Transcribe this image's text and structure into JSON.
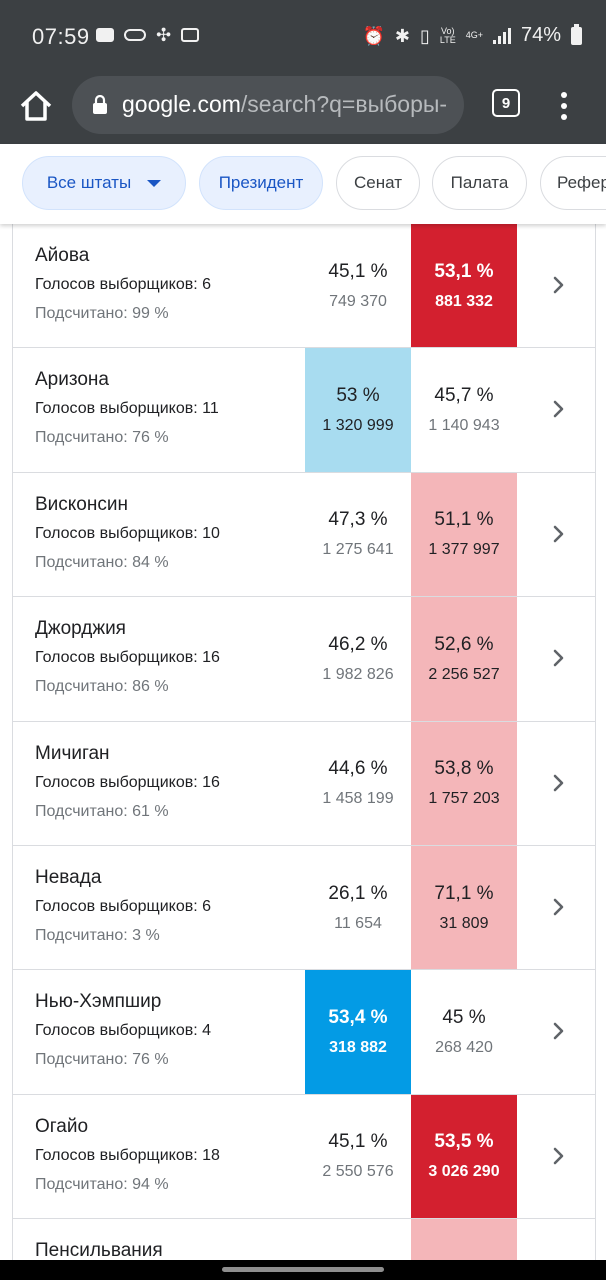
{
  "status_bar": {
    "time": "07:59",
    "network": "4G+",
    "lte": "LTE",
    "volte": "Vo)",
    "battery": "74%"
  },
  "browser": {
    "url_domain": "google.com",
    "url_path": "/search?q=выборы-",
    "tab_count": "9"
  },
  "chips": [
    {
      "label": "Все штаты",
      "selected": true
    },
    {
      "label": "Президент",
      "selected": true
    },
    {
      "label": "Сенат",
      "selected": false
    },
    {
      "label": "Палата",
      "selected": false
    },
    {
      "label": "Рефер",
      "selected": false
    }
  ],
  "colors": {
    "dem_strong": "#039be5",
    "dem_light": "#a8dcf0",
    "rep_strong": "#d3202f",
    "rep_light": "#f4b6b9"
  },
  "electors_prefix": "Голосов выборщиков: ",
  "counted_prefix": "Подсчитано: ",
  "rows": [
    {
      "state": "Айова",
      "electors": "Голосов выборщиков: 6",
      "counted": "Подсчитано: 99 %",
      "dem_pct": "45,1 %",
      "dem_votes": "749 370",
      "rep_pct": "53,1 %",
      "rep_votes": "881 332",
      "winner": "rep",
      "call": "strong"
    },
    {
      "state": "Аризона",
      "electors": "Голосов выборщиков: 11",
      "counted": "Подсчитано: 76 %",
      "dem_pct": "53 %",
      "dem_votes": "1 320 999",
      "rep_pct": "45,7 %",
      "rep_votes": "1 140 943",
      "winner": "dem",
      "call": "light"
    },
    {
      "state": "Висконсин",
      "electors": "Голосов выборщиков: 10",
      "counted": "Подсчитано: 84 %",
      "dem_pct": "47,3 %",
      "dem_votes": "1 275 641",
      "rep_pct": "51,1 %",
      "rep_votes": "1 377 997",
      "winner": "rep",
      "call": "light"
    },
    {
      "state": "Джорджия",
      "electors": "Голосов выборщиков: 16",
      "counted": "Подсчитано: 86 %",
      "dem_pct": "46,2 %",
      "dem_votes": "1 982 826",
      "rep_pct": "52,6 %",
      "rep_votes": "2 256 527",
      "winner": "rep",
      "call": "light"
    },
    {
      "state": "Мичиган",
      "electors": "Голосов выборщиков: 16",
      "counted": "Подсчитано: 61 %",
      "dem_pct": "44,6 %",
      "dem_votes": "1 458 199",
      "rep_pct": "53,8 %",
      "rep_votes": "1 757 203",
      "winner": "rep",
      "call": "light"
    },
    {
      "state": "Невада",
      "electors": "Голосов выборщиков: 6",
      "counted": "Подсчитано: 3 %",
      "dem_pct": "26,1 %",
      "dem_votes": "11 654",
      "rep_pct": "71,1 %",
      "rep_votes": "31 809",
      "winner": "rep",
      "call": "light"
    },
    {
      "state": "Нью-Хэмпшир",
      "electors": "Голосов выборщиков: 4",
      "counted": "Подсчитано: 76 %",
      "dem_pct": "53,4 %",
      "dem_votes": "318 882",
      "rep_pct": "45 %",
      "rep_votes": "268 420",
      "winner": "dem",
      "call": "strong"
    },
    {
      "state": "Огайо",
      "electors": "Голосов выборщиков: 18",
      "counted": "Подсчитано: 94 %",
      "dem_pct": "45,1 %",
      "dem_votes": "2 550 576",
      "rep_pct": "53,5 %",
      "rep_votes": "3 026 290",
      "winner": "rep",
      "call": "strong"
    },
    {
      "state": "Пенсильвания",
      "electors": "",
      "counted": "",
      "dem_pct": "",
      "dem_votes": "",
      "rep_pct": "",
      "rep_votes": "",
      "winner": "rep",
      "call": "light"
    }
  ]
}
